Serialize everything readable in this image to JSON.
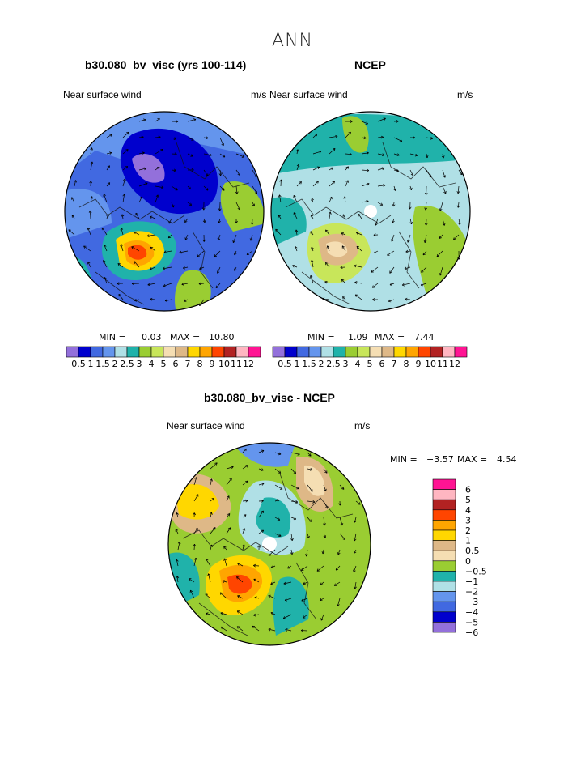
{
  "page": {
    "title": "ANN",
    "unit": "m/s",
    "field": "Near surface wind"
  },
  "panels": [
    {
      "id": "model",
      "title": "b30.080_bv_visc (yrs 100-114)",
      "left_label": "Near surface wind",
      "right_label": "m/s",
      "min_label": "MIN =",
      "min": "0.03",
      "max_label": "MAX =",
      "max": "10.80"
    },
    {
      "id": "obs",
      "title": "NCEP",
      "left_label": "Near surface wind",
      "right_label": "m/s",
      "min_label": "MIN =",
      "min": "1.09",
      "max_label": "MAX =",
      "max": "7.44"
    },
    {
      "id": "diff",
      "title": "b30.080_bv_visc - NCEP",
      "left_label": "Near surface wind",
      "right_label": "m/s",
      "min_label": "MIN =",
      "min": "−3.57",
      "max_label": "MAX =",
      "max": "4.54"
    }
  ],
  "chart_data": [
    {
      "type": "heatmap",
      "title": "b30.080_bv_visc (yrs 100-114)",
      "projection": "polar stereographic (north pole)",
      "variable": "Near surface wind",
      "units": "m/s",
      "min": 0.03,
      "max": 10.8,
      "levels": [
        "0.5",
        "1",
        "1.5",
        "2",
        "2.5",
        "3",
        "4",
        "5",
        "6",
        "7",
        "8",
        "9",
        "10",
        "11",
        "12"
      ],
      "colors": [
        "#9370db",
        "#0000cd",
        "#4169e1",
        "#6495ed",
        "#b0e0e6",
        "#20b2aa",
        "#9acd32",
        "#c8e65a",
        "#f5deb3",
        "#deb887",
        "#ffd700",
        "#ffa500",
        "#ff4500",
        "#b22222",
        "#ffb6c1",
        "#ff1493"
      ]
    },
    {
      "type": "heatmap",
      "title": "NCEP",
      "projection": "polar stereographic (north pole)",
      "variable": "Near surface wind",
      "units": "m/s",
      "min": 1.09,
      "max": 7.44,
      "levels": [
        "0.5",
        "1",
        "1.5",
        "2",
        "2.5",
        "3",
        "4",
        "5",
        "6",
        "7",
        "8",
        "9",
        "10",
        "11",
        "12"
      ],
      "colors": [
        "#9370db",
        "#0000cd",
        "#4169e1",
        "#6495ed",
        "#b0e0e6",
        "#20b2aa",
        "#9acd32",
        "#c8e65a",
        "#f5deb3",
        "#deb887",
        "#ffd700",
        "#ffa500",
        "#ff4500",
        "#b22222",
        "#ffb6c1",
        "#ff1493"
      ]
    },
    {
      "type": "heatmap",
      "title": "b30.080_bv_visc - NCEP",
      "projection": "polar stereographic (north pole)",
      "variable": "Near surface wind",
      "units": "m/s",
      "min": -3.57,
      "max": 4.54,
      "levels": [
        "6",
        "5",
        "4",
        "3",
        "2",
        "1",
        "0.5",
        "0",
        "−0.5",
        "−1",
        "−2",
        "−3",
        "−4",
        "−5",
        "−6"
      ],
      "colors": [
        "#ff1493",
        "#ffb6c1",
        "#b22222",
        "#ff4500",
        "#ffa500",
        "#ffd700",
        "#deb887",
        "#f5deb3",
        "#9acd32",
        "#20b2aa",
        "#b0e0e6",
        "#6495ed",
        "#4169e1",
        "#0000cd",
        "#9370db"
      ]
    }
  ]
}
